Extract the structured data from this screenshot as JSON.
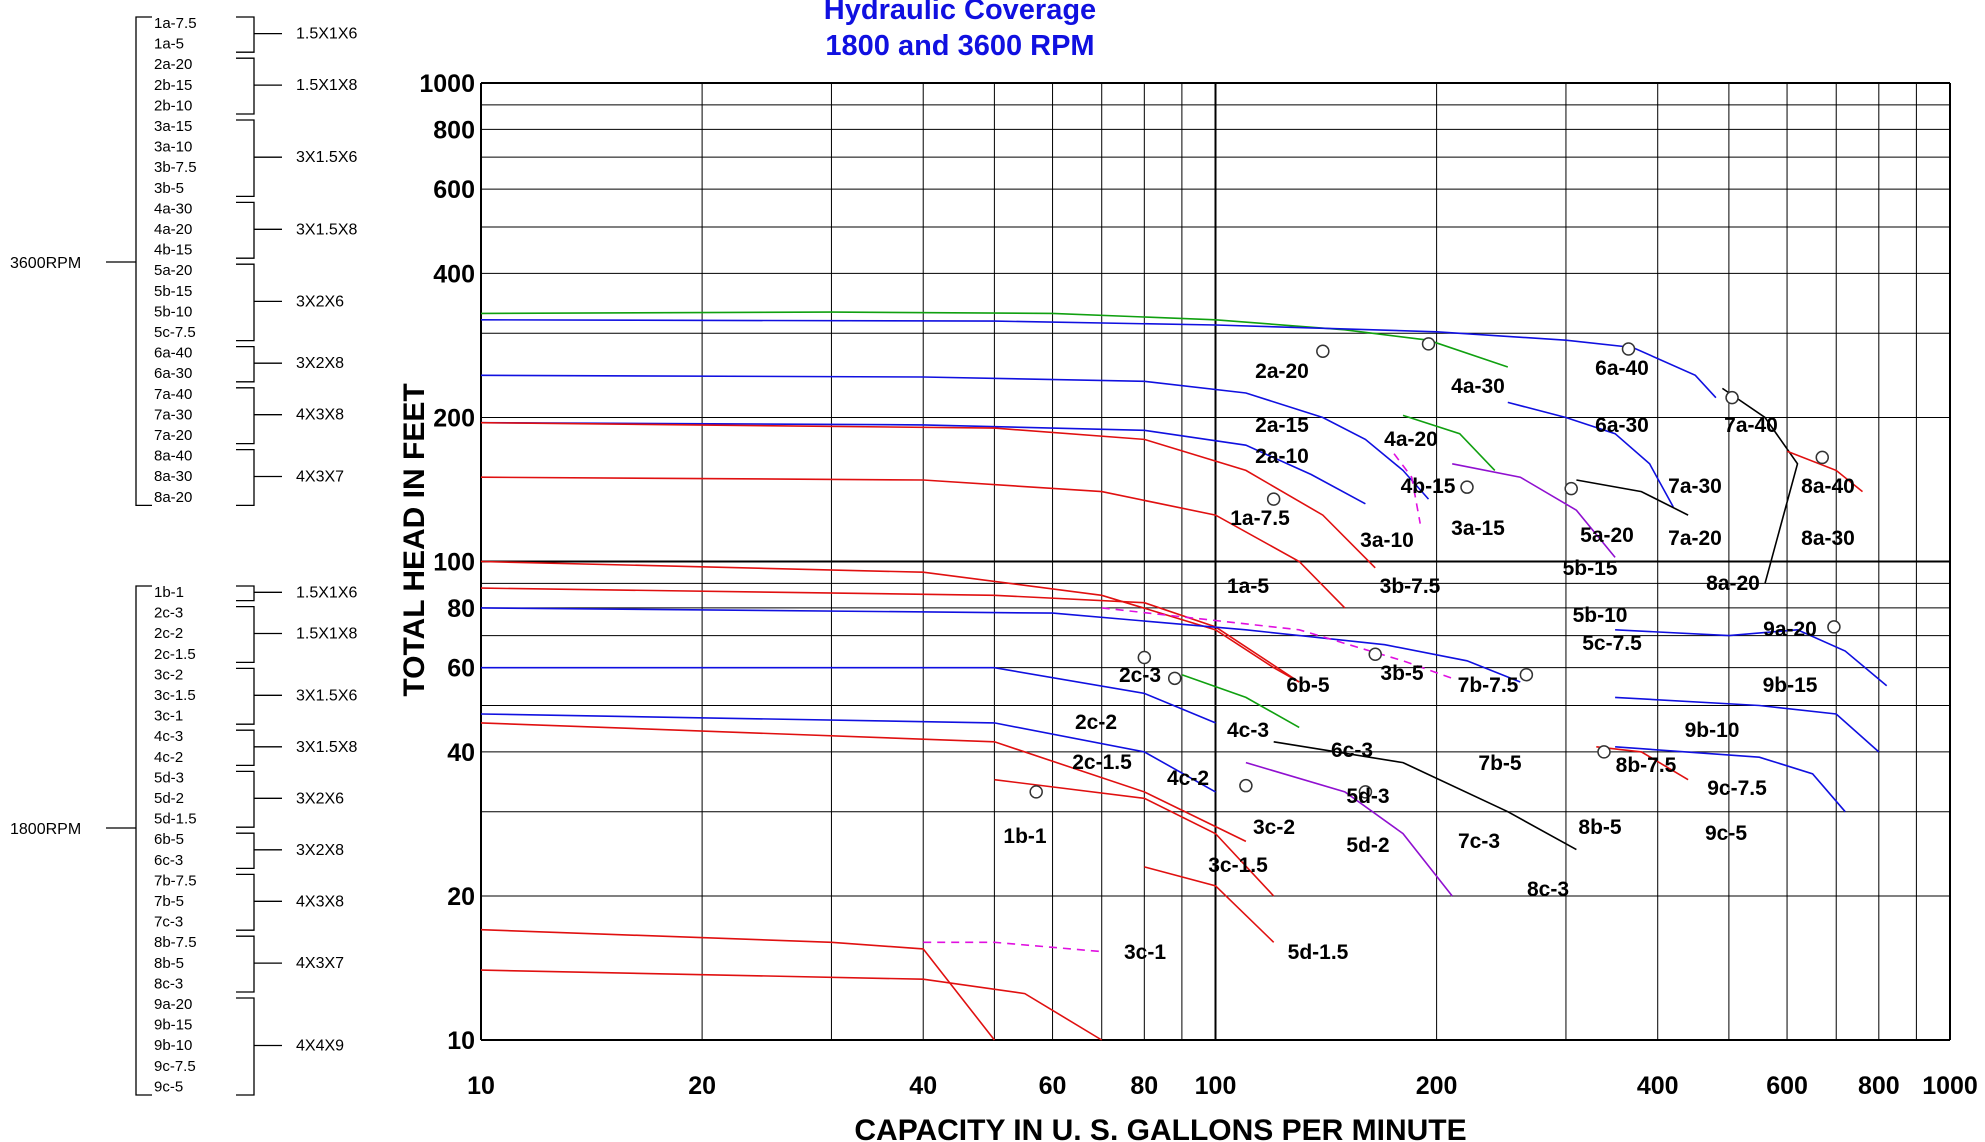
{
  "title_line1": "Hydraulic Coverage",
  "title_line2": "1800 and 3600 RPM",
  "colors": {
    "red": "#e01010",
    "blue": "#1010e0",
    "green": "#10a010",
    "purple": "#9010d0",
    "black": "#000000",
    "magenta": "#e010e0"
  },
  "legend": [
    {
      "rpm": "3600RPM",
      "groups": [
        {
          "size": "1.5X1X6",
          "items": [
            "1a-7.5",
            "1a-5"
          ]
        },
        {
          "size": "1.5X1X8",
          "items": [
            "2a-20",
            "2b-15",
            "2b-10"
          ]
        },
        {
          "size": "3X1.5X6",
          "items": [
            "3a-15",
            "3a-10",
            "3b-7.5",
            "3b-5"
          ]
        },
        {
          "size": "3X1.5X8",
          "items": [
            "4a-30",
            "4a-20",
            "4b-15"
          ]
        },
        {
          "size": "3X2X6",
          "items": [
            "5a-20",
            "5b-15",
            "5b-10",
            "5c-7.5"
          ]
        },
        {
          "size": "3X2X8",
          "items": [
            "6a-40",
            "6a-30"
          ]
        },
        {
          "size": "4X3X8",
          "items": [
            "7a-40",
            "7a-30",
            "7a-20"
          ]
        },
        {
          "size": "4X3X7",
          "items": [
            "8a-40",
            "8a-30",
            "8a-20"
          ]
        }
      ]
    },
    {
      "rpm": "1800RPM",
      "groups": [
        {
          "size": "1.5X1X6",
          "items": [
            "1b-1"
          ]
        },
        {
          "size": "1.5X1X8",
          "items": [
            "2c-3",
            "2c-2",
            "2c-1.5"
          ]
        },
        {
          "size": "3X1.5X6",
          "items": [
            "3c-2",
            "3c-1.5",
            "3c-1"
          ]
        },
        {
          "size": "3X1.5X8",
          "items": [
            "4c-3",
            "4c-2"
          ]
        },
        {
          "size": "3X2X6",
          "items": [
            "5d-3",
            "5d-2",
            "5d-1.5"
          ]
        },
        {
          "size": "3X2X8",
          "items": [
            "6b-5",
            "6c-3"
          ]
        },
        {
          "size": "4X3X8",
          "items": [
            "7b-7.5",
            "7b-5",
            "7c-3"
          ]
        },
        {
          "size": "4X3X7",
          "items": [
            "8b-7.5",
            "8b-5",
            "8c-3"
          ]
        },
        {
          "size": "4X4X9",
          "items": [
            "9a-20",
            "9b-15",
            "9b-10",
            "9c-7.5",
            "9c-5"
          ]
        }
      ]
    }
  ],
  "chart_data": {
    "type": "line",
    "title": "Hydraulic Coverage 1800 and 3600 RPM",
    "xlabel": "CAPACITY IN U. S. GALLONS PER MINUTE",
    "ylabel": "TOTAL HEAD IN FEET",
    "x_scale": "log",
    "y_scale": "log",
    "xlim": [
      10,
      1000
    ],
    "ylim": [
      10,
      1000
    ],
    "x_ticks": [
      10,
      20,
      40,
      60,
      80,
      100,
      200,
      400,
      600,
      800,
      1000
    ],
    "y_ticks": [
      10,
      20,
      40,
      60,
      80,
      100,
      200,
      400,
      600,
      800,
      1000
    ],
    "x_minor": [
      30,
      50,
      70,
      90,
      300,
      500,
      700,
      900
    ],
    "y_minor": [
      30,
      50,
      70,
      90,
      300,
      500,
      700,
      900
    ],
    "x_tick_labels": [
      "10",
      "20",
      "40",
      "60",
      "80",
      "100",
      "200",
      "400",
      "600",
      "800",
      "1000"
    ],
    "y_tick_labels": [
      "10",
      "20",
      "40",
      "60",
      "80",
      "100",
      "200",
      "400",
      "600",
      "800",
      "1000"
    ],
    "grid": true,
    "series": [
      {
        "color": "green",
        "dash": false,
        "points": [
          [
            10,
            330
          ],
          [
            30,
            332
          ],
          [
            60,
            330
          ],
          [
            100,
            320
          ],
          [
            150,
            305
          ],
          [
            195,
            290
          ],
          [
            250,
            255
          ]
        ]
      },
      {
        "color": "green",
        "dash": false,
        "points": [
          [
            180,
            202
          ],
          [
            215,
            185
          ],
          [
            240,
            155
          ]
        ]
      },
      {
        "color": "blue",
        "dash": false,
        "points": [
          [
            10,
            320
          ],
          [
            50,
            318
          ],
          [
            100,
            312
          ],
          [
            200,
            302
          ],
          [
            300,
            290
          ],
          [
            370,
            280
          ],
          [
            450,
            245
          ],
          [
            480,
            220
          ]
        ]
      },
      {
        "color": "blue",
        "dash": false,
        "points": [
          [
            10,
            245
          ],
          [
            40,
            243
          ],
          [
            80,
            238
          ],
          [
            110,
            225
          ],
          [
            140,
            200
          ],
          [
            160,
            180
          ],
          [
            180,
            155
          ],
          [
            195,
            135
          ]
        ]
      },
      {
        "color": "blue",
        "dash": false,
        "points": [
          [
            10,
            195
          ],
          [
            40,
            193
          ],
          [
            80,
            188
          ],
          [
            110,
            175
          ],
          [
            135,
            152
          ],
          [
            160,
            132
          ]
        ]
      },
      {
        "color": "red",
        "dash": false,
        "points": [
          [
            10,
            195
          ],
          [
            50,
            190
          ],
          [
            80,
            180
          ],
          [
            110,
            155
          ],
          [
            140,
            125
          ],
          [
            165,
            97
          ]
        ]
      },
      {
        "color": "red",
        "dash": false,
        "points": [
          [
            10,
            150
          ],
          [
            40,
            148
          ],
          [
            70,
            140
          ],
          [
            100,
            125
          ],
          [
            130,
            100
          ],
          [
            150,
            80
          ]
        ]
      },
      {
        "color": "red",
        "dash": false,
        "points": [
          [
            10,
            100
          ],
          [
            40,
            95
          ],
          [
            70,
            85
          ],
          [
            100,
            72
          ],
          [
            120,
            60
          ],
          [
            130,
            56
          ]
        ]
      },
      {
        "color": "red",
        "dash": false,
        "points": [
          [
            10,
            88
          ],
          [
            50,
            85
          ],
          [
            80,
            82
          ],
          [
            100,
            73
          ],
          [
            130,
            56
          ]
        ]
      },
      {
        "color": "magenta",
        "dash": true,
        "points": [
          [
            175,
            168
          ],
          [
            185,
            150
          ],
          [
            190,
            120
          ]
        ]
      },
      {
        "color": "purple",
        "dash": false,
        "points": [
          [
            210,
            160
          ],
          [
            260,
            150
          ],
          [
            310,
            128
          ],
          [
            350,
            102
          ]
        ]
      },
      {
        "color": "blue",
        "dash": false,
        "points": [
          [
            250,
            215
          ],
          [
            300,
            200
          ],
          [
            350,
            185
          ],
          [
            390,
            160
          ],
          [
            420,
            130
          ]
        ]
      },
      {
        "color": "black",
        "dash": false,
        "points": [
          [
            310,
            148
          ],
          [
            380,
            140
          ],
          [
            440,
            125
          ]
        ]
      },
      {
        "color": "black",
        "dash": false,
        "points": [
          [
            490,
            230
          ],
          [
            560,
            200
          ],
          [
            620,
            160
          ],
          [
            560,
            90
          ]
        ]
      },
      {
        "color": "red",
        "dash": false,
        "points": [
          [
            600,
            170
          ],
          [
            700,
            155
          ],
          [
            760,
            140
          ]
        ]
      },
      {
        "color": "blue",
        "dash": false,
        "points": [
          [
            10,
            80
          ],
          [
            60,
            78
          ],
          [
            110,
            72
          ],
          [
            170,
            67
          ],
          [
            220,
            62
          ],
          [
            260,
            56
          ]
        ]
      },
      {
        "color": "blue",
        "dash": false,
        "points": [
          [
            10,
            60
          ],
          [
            50,
            60
          ],
          [
            80,
            53
          ],
          [
            100,
            46
          ]
        ]
      },
      {
        "color": "blue",
        "dash": false,
        "points": [
          [
            10,
            48
          ],
          [
            50,
            46
          ],
          [
            80,
            40
          ],
          [
            100,
            33
          ]
        ]
      },
      {
        "color": "green",
        "dash": false,
        "points": [
          [
            90,
            58
          ],
          [
            110,
            52
          ],
          [
            130,
            45
          ]
        ]
      },
      {
        "color": "magenta",
        "dash": true,
        "points": [
          [
            70,
            80
          ],
          [
            130,
            72
          ],
          [
            180,
            62
          ],
          [
            210,
            57
          ]
        ]
      },
      {
        "color": "magenta",
        "dash": true,
        "points": [
          [
            40,
            16
          ],
          [
            50,
            16
          ],
          [
            70,
            15.3
          ]
        ]
      },
      {
        "color": "red",
        "dash": false,
        "points": [
          [
            10,
            17
          ],
          [
            30,
            16
          ],
          [
            40,
            15.5
          ],
          [
            50,
            10
          ]
        ]
      },
      {
        "color": "red",
        "dash": false,
        "points": [
          [
            10,
            14
          ],
          [
            40,
            13.4
          ],
          [
            55,
            12.5
          ],
          [
            70,
            10
          ]
        ]
      },
      {
        "color": "red",
        "dash": false,
        "points": [
          [
            10,
            46
          ],
          [
            50,
            42
          ],
          [
            80,
            33
          ],
          [
            110,
            26
          ]
        ]
      },
      {
        "color": "red",
        "dash": false,
        "points": [
          [
            50,
            35
          ],
          [
            80,
            32
          ],
          [
            100,
            27
          ],
          [
            120,
            20
          ]
        ]
      },
      {
        "color": "red",
        "dash": false,
        "points": [
          [
            80,
            23
          ],
          [
            100,
            21
          ],
          [
            120,
            16
          ]
        ]
      },
      {
        "color": "purple",
        "dash": false,
        "points": [
          [
            110,
            38
          ],
          [
            150,
            33
          ],
          [
            180,
            27
          ],
          [
            210,
            20
          ]
        ]
      },
      {
        "color": "black",
        "dash": false,
        "points": [
          [
            120,
            42
          ],
          [
            180,
            38
          ],
          [
            250,
            30
          ],
          [
            310,
            25
          ]
        ]
      },
      {
        "color": "red",
        "dash": false,
        "points": [
          [
            330,
            41
          ],
          [
            380,
            40
          ],
          [
            440,
            35
          ]
        ]
      },
      {
        "color": "blue",
        "dash": false,
        "points": [
          [
            350,
            72
          ],
          [
            500,
            70
          ],
          [
            620,
            72
          ],
          [
            720,
            65
          ],
          [
            820,
            55
          ]
        ]
      },
      {
        "color": "blue",
        "dash": false,
        "points": [
          [
            350,
            52
          ],
          [
            550,
            50
          ],
          [
            700,
            48
          ],
          [
            800,
            40
          ]
        ]
      },
      {
        "color": "blue",
        "dash": false,
        "points": [
          [
            350,
            41
          ],
          [
            550,
            39
          ],
          [
            650,
            36
          ],
          [
            720,
            30
          ]
        ]
      }
    ],
    "markers": [
      {
        "x": 140,
        "y": 275
      },
      {
        "x": 195,
        "y": 285
      },
      {
        "x": 365,
        "y": 278
      },
      {
        "x": 505,
        "y": 220
      },
      {
        "x": 670,
        "y": 165
      },
      {
        "x": 120,
        "y": 135
      },
      {
        "x": 220,
        "y": 143
      },
      {
        "x": 305,
        "y": 142
      },
      {
        "x": 695,
        "y": 73
      },
      {
        "x": 165,
        "y": 64
      },
      {
        "x": 80,
        "y": 63
      },
      {
        "x": 88,
        "y": 57
      },
      {
        "x": 57,
        "y": 33
      },
      {
        "x": 110,
        "y": 34
      },
      {
        "x": 160,
        "y": 33
      },
      {
        "x": 265,
        "y": 58
      },
      {
        "x": 338,
        "y": 40
      }
    ],
    "curve_labels": [
      "2a-20",
      "4a-30",
      "6a-40",
      "2a-15",
      "4a-20",
      "6a-30",
      "7a-40",
      "2a-10",
      "4b-15",
      "7a-30",
      "8a-40",
      "1a-7.5",
      "3a-15",
      "3a-10",
      "5a-20",
      "7a-20",
      "8a-30",
      "5b-15",
      "1a-5",
      "3b-7.5",
      "8a-20",
      "5b-10",
      "9a-20",
      "5c-7.5",
      "3b-5",
      "2c-3",
      "6b-5",
      "7b-7.5",
      "9b-15",
      "2c-2",
      "4c-3",
      "9b-10",
      "6c-3",
      "7b-5",
      "2c-1.5",
      "8b-7.5",
      "4c-2",
      "5d-3",
      "9c-7.5",
      "3c-2",
      "8b-5",
      "9c-5",
      "1b-1",
      "5d-2",
      "7c-3",
      "3c-1.5",
      "8c-3",
      "3c-1",
      "5d-1.5"
    ]
  }
}
